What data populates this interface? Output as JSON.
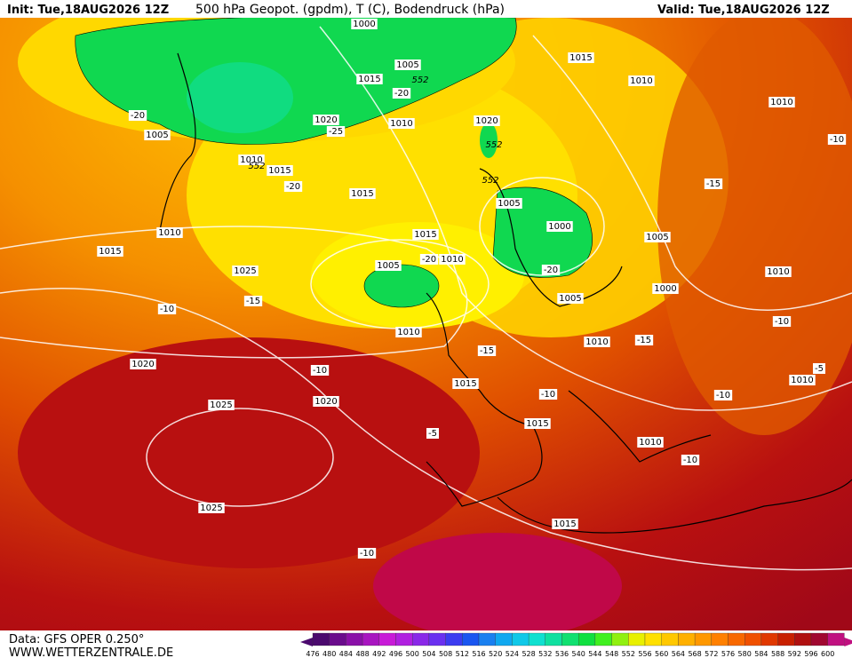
{
  "header": {
    "init": "Init: Tue,18AUG2026 12Z",
    "title": "500 hPa Geopot. (gpdm), T (C), Bodendruck (hPa)",
    "valid": "Valid: Tue,18AUG2026 12Z"
  },
  "footer": {
    "data": "Data: GFS OPER 0.250°",
    "site": "WWW.WETTERZENTRALE.DE"
  },
  "scale": {
    "levels": [
      "476",
      "480",
      "484",
      "488",
      "492",
      "496",
      "500",
      "504",
      "508",
      "512",
      "516",
      "520",
      "524",
      "528",
      "532",
      "536",
      "540",
      "544",
      "548",
      "552",
      "556",
      "560",
      "564",
      "568",
      "572",
      "576",
      "580",
      "584",
      "588",
      "592",
      "596",
      "600"
    ],
    "colors": [
      "#4b0a6e",
      "#6a0c8c",
      "#8a10a8",
      "#a815c0",
      "#c81ad8",
      "#b020e0",
      "#8a28e8",
      "#6a30f0",
      "#3c3cf0",
      "#1a56f0",
      "#1a80f0",
      "#10a8f0",
      "#10c8e8",
      "#10e0d0",
      "#10e0a0",
      "#10e070",
      "#10e040",
      "#40f020",
      "#90f010",
      "#e8f000",
      "#ffe000",
      "#ffc800",
      "#ffb000",
      "#ff9800",
      "#ff8000",
      "#f86800",
      "#f05000",
      "#e03800",
      "#c82000",
      "#b01010",
      "#a00830",
      "#c01080"
    ]
  },
  "map": {
    "isobars": [
      "1000",
      "1005",
      "1015",
      "1010",
      "1020",
      "1005",
      "1010",
      "1015",
      "1015",
      "1010",
      "1015",
      "1015",
      "1005",
      "1010",
      "1025",
      "1005",
      "1000",
      "1005",
      "1000",
      "1005",
      "1015",
      "1010",
      "1010",
      "1010",
      "1010",
      "1010",
      "1020",
      "1015",
      "1020",
      "1025",
      "1015",
      "1010",
      "1010",
      "1025",
      "1015",
      "1020"
    ],
    "temperatures": [
      "-20",
      "-20",
      "-25",
      "-20",
      "-15",
      "-10",
      "-10",
      "-15",
      "-10",
      "-15",
      "-10",
      "-5",
      "-10",
      "-10",
      "-15",
      "-10",
      "-20",
      "-5",
      "-10",
      "-20"
    ],
    "geopotential": [
      "552",
      "552",
      "552",
      "552"
    ]
  }
}
